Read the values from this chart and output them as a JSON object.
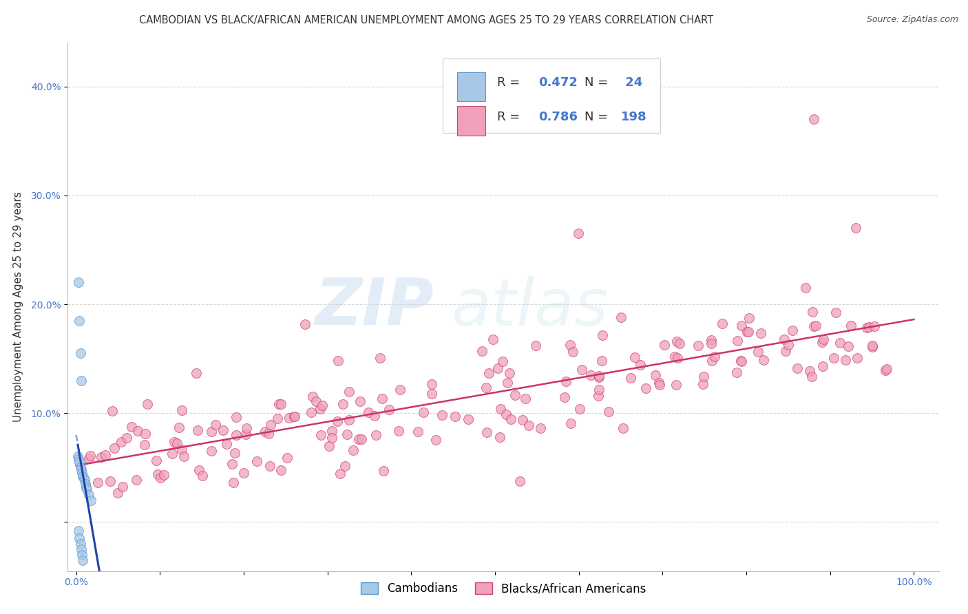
{
  "title": "CAMBODIAN VS BLACK/AFRICAN AMERICAN UNEMPLOYMENT AMONG AGES 25 TO 29 YEARS CORRELATION CHART",
  "source": "Source: ZipAtlas.com",
  "ylabel": "Unemployment Among Ages 25 to 29 years",
  "xlim": [
    -0.01,
    1.03
  ],
  "ylim": [
    -0.045,
    0.44
  ],
  "xticks": [
    0.0,
    0.1,
    0.2,
    0.3,
    0.4,
    0.5,
    0.6,
    0.7,
    0.8,
    0.9,
    1.0
  ],
  "xticklabels": [
    "0.0%",
    "",
    "",
    "",
    "",
    "",
    "",
    "",
    "",
    "",
    "100.0%"
  ],
  "yticks": [
    0.0,
    0.1,
    0.2,
    0.3,
    0.4
  ],
  "yticklabels": [
    "",
    "10.0%",
    "20.0%",
    "30.0%",
    "40.0%"
  ],
  "cambodian_color": "#a8c8e8",
  "cambodian_edge": "#5599cc",
  "black_color": "#f0a0b8",
  "black_edge": "#cc4477",
  "trend_cambodian_color": "#2244aa",
  "trend_black_color": "#cc3366",
  "R_cambodian": 0.472,
  "N_cambodian": 24,
  "R_black": 0.786,
  "N_black": 198,
  "watermark_zip": "ZIP",
  "watermark_atlas": "atlas",
  "background_color": "#ffffff",
  "grid_color": "#cccccc",
  "title_fontsize": 10.5,
  "axis_label_fontsize": 11,
  "tick_fontsize": 10,
  "tick_color": "#4477cc",
  "text_color": "#333333"
}
